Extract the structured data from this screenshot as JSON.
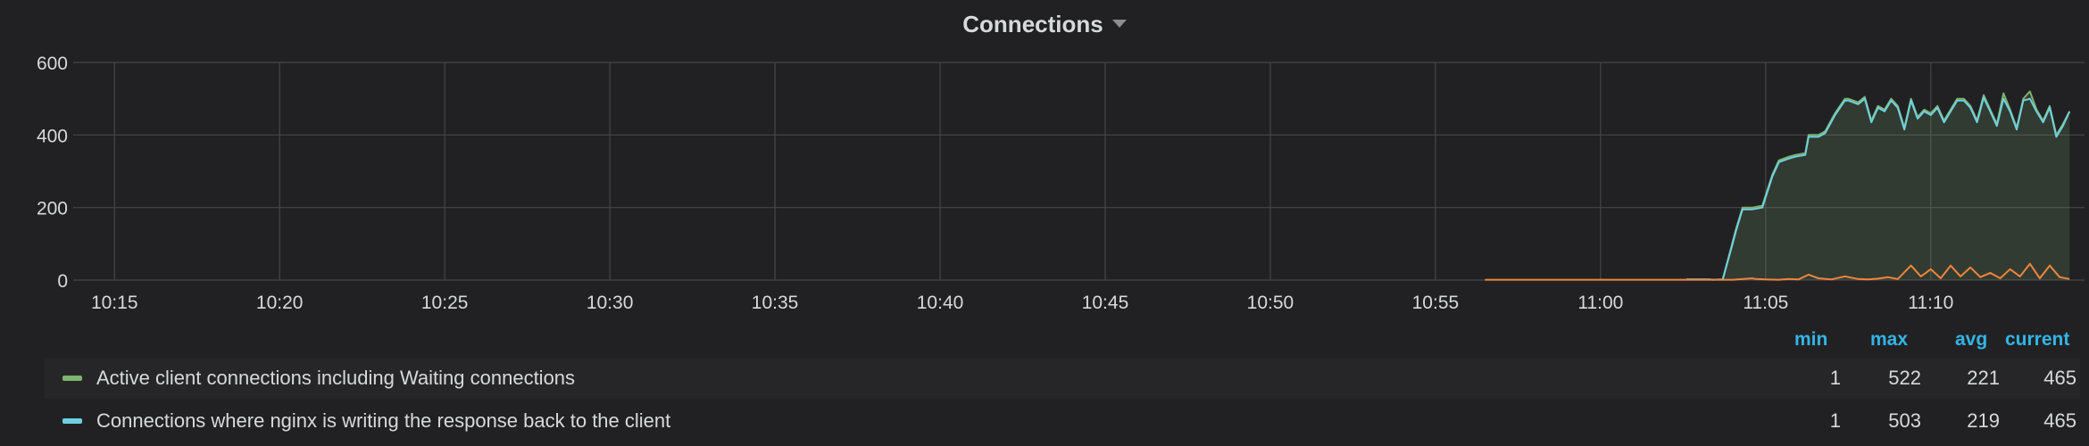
{
  "panel": {
    "title": "Connections"
  },
  "colors": {
    "active": "#7eb26d",
    "writing": "#6ed0e0",
    "third": "#ef843c",
    "grid": "#464649",
    "axis_text": "#d8d9da",
    "legend_header": "#33b5e5"
  },
  "chart_data": {
    "type": "line",
    "x_ticks": [
      "10:15",
      "10:20",
      "10:25",
      "10:30",
      "10:35",
      "10:40",
      "10:45",
      "10:50",
      "10:55",
      "11:00",
      "11:05",
      "11:10"
    ],
    "y_ticks": [
      "0",
      "200",
      "400",
      "600"
    ],
    "ylim": [
      0,
      600
    ],
    "xlim_minutes": [
      13.75,
      74.25
    ],
    "grid": true,
    "legend_placement": "bottom",
    "series": [
      {
        "name": "Active client connections including Waiting connections",
        "color_key": "active",
        "fill": true,
        "t": [
          62.6,
          63.3,
          63.4,
          63.7,
          64.0,
          64.1,
          64.3,
          64.6,
          64.9,
          65.2,
          65.4,
          65.7,
          65.9,
          66.2,
          66.3,
          66.6,
          66.8,
          67.1,
          67.4,
          67.5,
          67.8,
          68.0,
          68.2,
          68.4,
          68.6,
          68.8,
          69.0,
          69.2,
          69.4,
          69.6,
          69.8,
          70.0,
          70.2,
          70.4,
          70.6,
          70.8,
          71.0,
          71.2,
          71.4,
          71.6,
          71.8,
          72.0,
          72.2,
          72.4,
          72.6,
          72.8,
          73.0,
          73.2,
          73.4,
          73.6,
          73.8,
          74.0,
          74.2
        ],
        "v": [
          2,
          2,
          1,
          2,
          105,
          140,
          200,
          200,
          205,
          290,
          330,
          340,
          345,
          350,
          400,
          400,
          410,
          460,
          500,
          500,
          490,
          505,
          440,
          480,
          470,
          500,
          480,
          420,
          500,
          450,
          470,
          460,
          480,
          440,
          470,
          500,
          500,
          480,
          440,
          510,
          470,
          430,
          515,
          470,
          420,
          500,
          520,
          470,
          440,
          480,
          400,
          430,
          465
        ]
      },
      {
        "name": "Connections where nginx is writing the response back to the client",
        "color_key": "writing",
        "fill": false,
        "t": [
          62.6,
          63.3,
          63.4,
          63.7,
          64.0,
          64.1,
          64.3,
          64.6,
          64.9,
          65.2,
          65.4,
          65.7,
          65.9,
          66.2,
          66.3,
          66.6,
          66.8,
          67.1,
          67.4,
          67.5,
          67.8,
          68.0,
          68.2,
          68.4,
          68.6,
          68.8,
          69.0,
          69.2,
          69.4,
          69.6,
          69.8,
          70.0,
          70.2,
          70.4,
          70.6,
          70.8,
          71.0,
          71.2,
          71.4,
          71.6,
          71.8,
          72.0,
          72.2,
          72.4,
          72.6,
          72.8,
          73.0,
          73.2,
          73.4,
          73.6,
          73.8,
          74.0,
          74.2
        ],
        "v": [
          2,
          2,
          1,
          2,
          100,
          135,
          195,
          195,
          200,
          285,
          325,
          335,
          340,
          345,
          395,
          395,
          405,
          455,
          495,
          495,
          485,
          500,
          435,
          475,
          465,
          495,
          475,
          415,
          495,
          445,
          465,
          455,
          475,
          435,
          465,
          495,
          495,
          475,
          435,
          503,
          465,
          425,
          500,
          465,
          415,
          495,
          500,
          465,
          435,
          475,
          395,
          425,
          465
        ]
      },
      {
        "name": "",
        "color_key": "third",
        "fill": false,
        "t": [
          56.5,
          63.0,
          64.0,
          64.6,
          64.7,
          65.0,
          65.4,
          65.7,
          66.0,
          66.3,
          66.6,
          67.0,
          67.4,
          67.8,
          68.1,
          68.4,
          68.7,
          69.0,
          69.4,
          69.7,
          70.0,
          70.3,
          70.6,
          70.9,
          71.2,
          71.5,
          71.8,
          72.1,
          72.4,
          72.7,
          73.0,
          73.3,
          73.6,
          73.9,
          74.2
        ],
        "v": [
          1,
          1,
          1,
          5,
          3,
          2,
          1,
          3,
          2,
          15,
          5,
          2,
          10,
          3,
          2,
          4,
          8,
          3,
          40,
          10,
          30,
          5,
          40,
          10,
          35,
          8,
          20,
          5,
          30,
          10,
          45,
          5,
          40,
          8,
          3
        ]
      }
    ]
  },
  "legend": {
    "headers": {
      "min": "min",
      "max": "max",
      "avg": "avg",
      "current": "current"
    },
    "rows": [
      {
        "label": "Active client connections including Waiting connections",
        "min": "1",
        "max": "522",
        "avg": "221",
        "current": "465"
      },
      {
        "label": "Connections where nginx is writing the response back to the client",
        "min": "1",
        "max": "503",
        "avg": "219",
        "current": "465"
      }
    ]
  }
}
